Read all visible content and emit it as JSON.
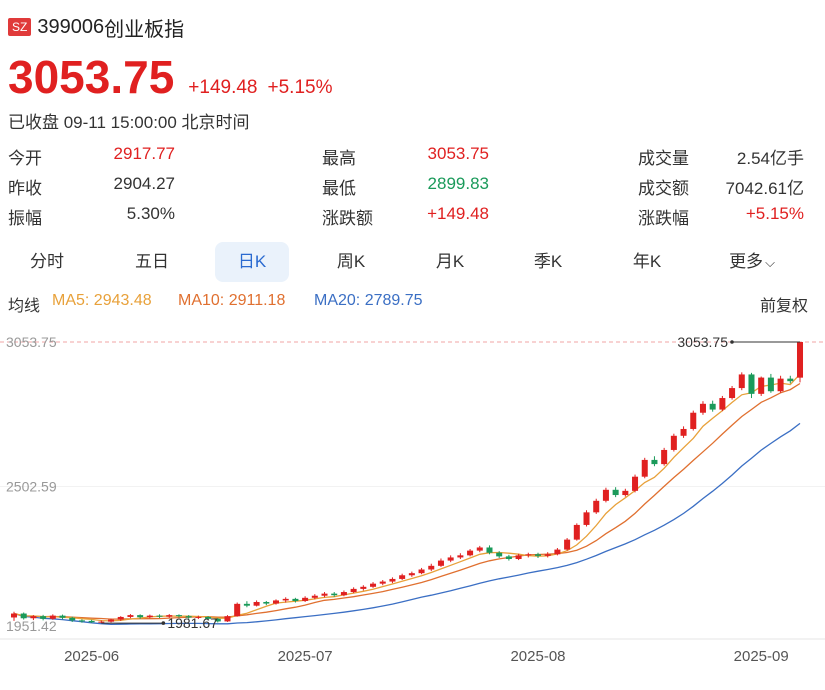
{
  "header": {
    "badge": "SZ",
    "code": "399006",
    "name": "创业板指"
  },
  "quote": {
    "price": "3053.75",
    "change": "+149.48",
    "change_pct": "+5.15%",
    "status": "已收盘 09-11 15:00:00 北京时间"
  },
  "stats": [
    [
      {
        "label": "今开",
        "value": "2917.77",
        "color": "red"
      },
      {
        "label": "最高",
        "value": "3053.75",
        "color": "red"
      },
      {
        "label": "成交量",
        "value": "2.54亿手",
        "color": "dark"
      }
    ],
    [
      {
        "label": "昨收",
        "value": "2904.27",
        "color": "dark"
      },
      {
        "label": "最低",
        "value": "2899.83",
        "color": "green"
      },
      {
        "label": "成交额",
        "value": "7042.61亿",
        "color": "dark"
      }
    ],
    [
      {
        "label": "振幅",
        "value": "5.30%",
        "color": "dark"
      },
      {
        "label": "涨跌额",
        "value": "+149.48",
        "color": "red"
      },
      {
        "label": "涨跌幅",
        "value": "+5.15%",
        "color": "red"
      }
    ]
  ],
  "tabs": [
    {
      "label": "分时"
    },
    {
      "label": "五日"
    },
    {
      "label": "日K",
      "active": true
    },
    {
      "label": "周K"
    },
    {
      "label": "月K"
    },
    {
      "label": "季K"
    },
    {
      "label": "年K"
    },
    {
      "label": "更多"
    }
  ],
  "ma_bar": {
    "title": "均线",
    "ma5": "MA5: 2943.48",
    "ma10": "MA10: 2911.18",
    "ma20": "MA20: 2789.75",
    "adjust": "前复权"
  },
  "colors": {
    "up": "#e02020",
    "down": "#1a9a5a",
    "ma5": "#e8a13a",
    "ma10": "#e07030",
    "ma20": "#3b6fc4"
  },
  "chart_data": {
    "type": "candlestick",
    "y_labels": [
      "3053.75",
      "2502.59",
      "1951.42"
    ],
    "x_labels": [
      "2025-06",
      "2025-07",
      "2025-08",
      "2025-09"
    ],
    "annotations": [
      {
        "text": "3053.75"
      },
      {
        "text": "1981.67"
      }
    ],
    "ylim": [
      1951.42,
      3053.75
    ],
    "candles": [
      [
        2003,
        2018,
        1990,
        2025
      ],
      [
        2018,
        2000,
        1995,
        2022
      ],
      [
        2000,
        2008,
        1993,
        2012
      ],
      [
        2008,
        1998,
        1992,
        2013
      ],
      [
        1998,
        2010,
        1994,
        2015
      ],
      [
        2010,
        2002,
        1996,
        2014
      ],
      [
        2002,
        1992,
        1986,
        2006
      ],
      [
        1992,
        1990,
        1983,
        1996
      ],
      [
        1990,
        1985,
        1982,
        1994
      ],
      [
        1985,
        1987,
        1981.67,
        1992
      ],
      [
        1987,
        1995,
        1984,
        1999
      ],
      [
        1995,
        2005,
        1990,
        2008
      ],
      [
        2005,
        2012,
        2000,
        2016
      ],
      [
        2012,
        2004,
        1998,
        2015
      ],
      [
        2004,
        2010,
        2000,
        2014
      ],
      [
        2010,
        2006,
        2001,
        2015
      ],
      [
        2006,
        2012,
        2002,
        2016
      ],
      [
        2012,
        2008,
        2003,
        2015
      ],
      [
        2008,
        2003,
        1998,
        2012
      ],
      [
        2003,
        2005,
        1997,
        2010
      ],
      [
        2005,
        1998,
        1992,
        2008
      ],
      [
        1998,
        1988,
        1984,
        2001
      ],
      [
        1988,
        2008,
        1986,
        2012
      ],
      [
        2008,
        2055,
        2006,
        2060
      ],
      [
        2055,
        2048,
        2042,
        2065
      ],
      [
        2048,
        2062,
        2045,
        2068
      ],
      [
        2062,
        2056,
        2050,
        2066
      ],
      [
        2056,
        2068,
        2052,
        2072
      ],
      [
        2068,
        2074,
        2060,
        2080
      ],
      [
        2074,
        2066,
        2060,
        2078
      ],
      [
        2066,
        2078,
        2062,
        2084
      ],
      [
        2078,
        2086,
        2072,
        2092
      ],
      [
        2086,
        2094,
        2080,
        2100
      ],
      [
        2094,
        2088,
        2082,
        2100
      ],
      [
        2088,
        2100,
        2084,
        2106
      ],
      [
        2100,
        2112,
        2096,
        2118
      ],
      [
        2112,
        2120,
        2106,
        2126
      ],
      [
        2120,
        2132,
        2116,
        2138
      ],
      [
        2132,
        2140,
        2126,
        2146
      ],
      [
        2140,
        2150,
        2134,
        2156
      ],
      [
        2150,
        2164,
        2146,
        2170
      ],
      [
        2164,
        2172,
        2158,
        2178
      ],
      [
        2172,
        2186,
        2168,
        2192
      ],
      [
        2186,
        2200,
        2180,
        2208
      ],
      [
        2200,
        2220,
        2196,
        2228
      ],
      [
        2220,
        2232,
        2214,
        2240
      ],
      [
        2232,
        2240,
        2226,
        2248
      ],
      [
        2240,
        2258,
        2236,
        2264
      ],
      [
        2258,
        2270,
        2252,
        2276
      ],
      [
        2270,
        2250,
        2244,
        2278
      ],
      [
        2250,
        2236,
        2230,
        2256
      ],
      [
        2236,
        2226,
        2220,
        2242
      ],
      [
        2226,
        2240,
        2222,
        2246
      ],
      [
        2240,
        2244,
        2232,
        2250
      ],
      [
        2244,
        2238,
        2230,
        2250
      ],
      [
        2238,
        2244,
        2232,
        2252
      ],
      [
        2244,
        2262,
        2240,
        2268
      ],
      [
        2262,
        2300,
        2258,
        2306
      ],
      [
        2300,
        2356,
        2296,
        2362
      ],
      [
        2356,
        2404,
        2350,
        2412
      ],
      [
        2404,
        2448,
        2398,
        2456
      ],
      [
        2448,
        2490,
        2442,
        2498
      ],
      [
        2490,
        2470,
        2462,
        2500
      ],
      [
        2470,
        2486,
        2464,
        2494
      ],
      [
        2486,
        2540,
        2480,
        2548
      ],
      [
        2540,
        2604,
        2534,
        2612
      ],
      [
        2604,
        2588,
        2580,
        2618
      ],
      [
        2588,
        2642,
        2582,
        2650
      ],
      [
        2642,
        2696,
        2636,
        2704
      ],
      [
        2696,
        2722,
        2688,
        2732
      ],
      [
        2722,
        2784,
        2716,
        2792
      ],
      [
        2784,
        2818,
        2776,
        2828
      ],
      [
        2818,
        2796,
        2788,
        2830
      ],
      [
        2796,
        2840,
        2790,
        2848
      ],
      [
        2840,
        2878,
        2834,
        2886
      ],
      [
        2878,
        2930,
        2870,
        2938
      ],
      [
        2930,
        2856,
        2840,
        2936
      ],
      [
        2856,
        2918,
        2848,
        2922
      ],
      [
        2918,
        2866,
        2860,
        2932
      ],
      [
        2866,
        2914,
        2860,
        2925
      ],
      [
        2914,
        2904.27,
        2896,
        2925
      ],
      [
        2917.77,
        3053.75,
        2899.83,
        3053.75
      ]
    ]
  }
}
